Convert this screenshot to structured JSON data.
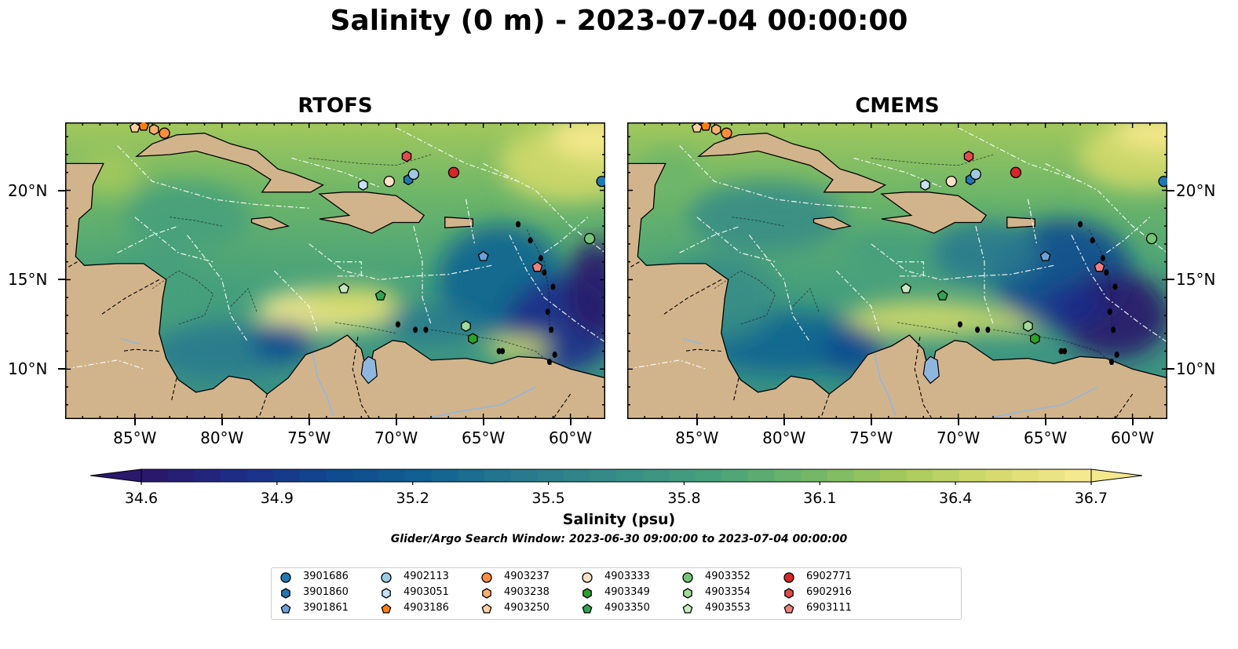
{
  "title": "Salinity (0 m) - 2023-07-04 00:00:00",
  "panels": [
    {
      "name": "RTOFS"
    },
    {
      "name": "CMEMS"
    }
  ],
  "lon_ticks": [
    "85°W",
    "80°W",
    "75°W",
    "70°W",
    "65°W",
    "60°W"
  ],
  "lat_ticks": [
    "20°N",
    "15°N",
    "10°N"
  ],
  "map_extent": {
    "lon_min": -89,
    "lon_max": -58,
    "lat_min": 7.2,
    "lat_max": 23.8
  },
  "colorbar": {
    "label": "Salinity (psu)",
    "ticks": [
      "34.6",
      "34.9",
      "35.2",
      "35.5",
      "35.8",
      "36.1",
      "36.4",
      "36.7"
    ],
    "min": 34.6,
    "max": 36.7,
    "extend": "both",
    "colormap": "haline",
    "colors": [
      "#2a186c",
      "#1d2f8a",
      "#0f4b8f",
      "#116491",
      "#2a7a8e",
      "#378d86",
      "#46a07c",
      "#6cb569",
      "#a2c85c",
      "#d2d96a",
      "#f5e98e"
    ]
  },
  "search_window": "Glider/Argo Search Window: 2023-06-30 09:00:00 to 2023-07-04 00:00:00",
  "floats": [
    {
      "id": "3901686",
      "marker": "circle",
      "color": "#1f77b4",
      "lon": -58.2,
      "lat": 20.5
    },
    {
      "id": "3901860",
      "marker": "hexagon",
      "color": "#1f77b4",
      "lon": -69.3,
      "lat": 20.6
    },
    {
      "id": "3901861",
      "marker": "pentagon",
      "color": "#6ea0d8",
      "lon": -65.0,
      "lat": 16.3
    },
    {
      "id": "4902113",
      "marker": "circle",
      "color": "#9ecae1",
      "lon": -69.0,
      "lat": 20.9
    },
    {
      "id": "4903051",
      "marker": "hexagon",
      "color": "#c6e2f5",
      "lon": -71.9,
      "lat": 20.3
    },
    {
      "id": "4903186",
      "marker": "pentagon",
      "color": "#ff7f0e",
      "lon": -84.5,
      "lat": 23.6
    },
    {
      "id": "4903237",
      "marker": "circle",
      "color": "#fd8d3c",
      "lon": -83.3,
      "lat": 23.2
    },
    {
      "id": "4903238",
      "marker": "hexagon",
      "color": "#fdae6b",
      "lon": -83.9,
      "lat": 23.4
    },
    {
      "id": "4903250",
      "marker": "pentagon",
      "color": "#fdd0a2",
      "lon": -85.0,
      "lat": 23.5
    },
    {
      "id": "4903333",
      "marker": "circle",
      "color": "#fde0c8",
      "lon": -70.4,
      "lat": 20.5
    },
    {
      "id": "4903349",
      "marker": "hexagon",
      "color": "#2ca02c",
      "lon": -65.6,
      "lat": 11.7
    },
    {
      "id": "4903350",
      "marker": "pentagon",
      "color": "#31a354",
      "lon": -70.9,
      "lat": 14.1
    },
    {
      "id": "4903352",
      "marker": "circle",
      "color": "#74c476",
      "lon": -58.9,
      "lat": 17.3
    },
    {
      "id": "4903354",
      "marker": "hexagon",
      "color": "#a1d99b",
      "lon": -66.0,
      "lat": 12.4
    },
    {
      "id": "4903553",
      "marker": "pentagon",
      "color": "#c7e9c0",
      "lon": -73.0,
      "lat": 14.5
    },
    {
      "id": "6902771",
      "marker": "circle",
      "color": "#d62728",
      "lon": -66.7,
      "lat": 21.0
    },
    {
      "id": "6902916",
      "marker": "hexagon",
      "color": "#e34a4a",
      "lon": -69.4,
      "lat": 21.9
    },
    {
      "id": "6903111",
      "marker": "pentagon",
      "color": "#f08080",
      "lon": -61.9,
      "lat": 15.7
    }
  ]
}
